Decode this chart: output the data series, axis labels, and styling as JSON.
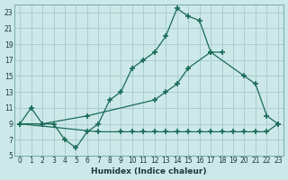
{
  "xlabel": "Humidex (Indice chaleur)",
  "bg_color": "#cce8e8",
  "grid_color": "#aacece",
  "line_color": "#1a6b5a",
  "xlim": [
    -0.5,
    23.5
  ],
  "ylim": [
    5,
    24
  ],
  "xticks": [
    0,
    1,
    2,
    3,
    4,
    5,
    6,
    7,
    8,
    9,
    10,
    11,
    12,
    13,
    14,
    15,
    16,
    17,
    18,
    19,
    20,
    21,
    22,
    23
  ],
  "yticks": [
    5,
    7,
    9,
    11,
    13,
    15,
    17,
    19,
    21,
    23
  ],
  "curve1_x": [
    0,
    1,
    2,
    3,
    4,
    5,
    6,
    7,
    8,
    9,
    10,
    11,
    12,
    13,
    14,
    15,
    16,
    17,
    18
  ],
  "curve1_y": [
    9,
    11,
    9,
    9,
    7,
    6,
    8,
    9,
    12,
    13,
    16,
    17,
    18,
    20,
    23.5,
    22.5,
    22,
    18,
    18
  ],
  "curve2_x": [
    0,
    2,
    6,
    12,
    13,
    14,
    15,
    17,
    20,
    21,
    22,
    23
  ],
  "curve2_y": [
    9,
    9,
    10,
    12,
    13,
    14,
    16,
    18,
    15,
    14,
    10,
    9
  ],
  "curve3_x": [
    0,
    7,
    9,
    10,
    11,
    12,
    13,
    14,
    15,
    16,
    17,
    18,
    19,
    20,
    21,
    22,
    23
  ],
  "curve3_y": [
    9,
    8,
    8,
    8,
    8,
    8,
    8,
    8,
    8,
    8,
    8,
    8,
    8,
    8,
    8,
    8,
    9
  ]
}
